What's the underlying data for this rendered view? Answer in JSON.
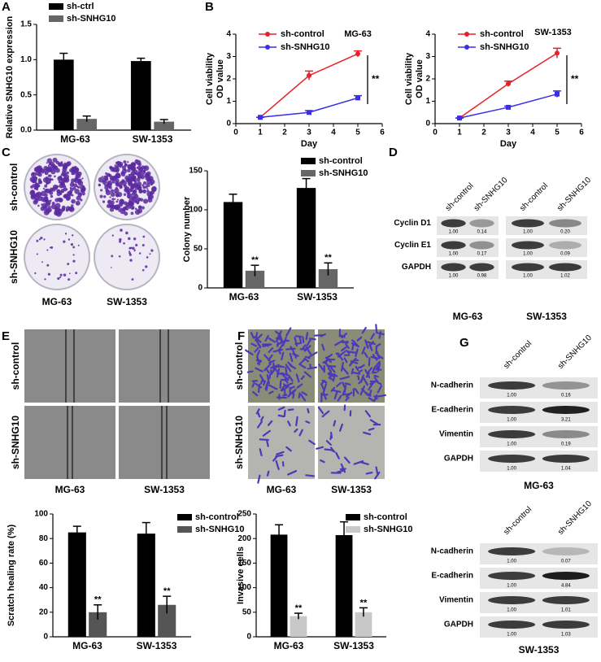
{
  "panels": [
    "A",
    "B",
    "C",
    "D",
    "E",
    "F",
    "G"
  ],
  "chart_data": [
    {
      "type": "bar",
      "ylabel": [
        "Relative SNHG10 expression"
      ],
      "categories": [
        "MG-63",
        "SW-1353"
      ],
      "series": [
        {
          "name": "sh-ctrl",
          "color": "#000000",
          "values": [
            1.0,
            0.98
          ],
          "errors": [
            0.09,
            0.04
          ]
        },
        {
          "name": "sh-SNHG10",
          "color": "#666666",
          "values": [
            0.16,
            0.12
          ],
          "errors": [
            0.04,
            0.03
          ]
        }
      ],
      "ylim": [
        0,
        1.5
      ],
      "yticks": [
        {
          "value": 0,
          "label": "0.0"
        },
        {
          "value": 0.5,
          "label": "0.5"
        },
        {
          "value": 1,
          "label": "1.0"
        },
        {
          "value": 1.5,
          "label": "1.5"
        }
      ]
    },
    {
      "type": "line",
      "title": "MG-63",
      "xlabel": "Day",
      "ylabel": [
        "Cell viability",
        "OD value"
      ],
      "x": [
        1,
        3,
        5
      ],
      "series": [
        {
          "name": "sh-control",
          "color": "#e8202a",
          "values": [
            0.28,
            2.15,
            3.12
          ],
          "errors": [
            0,
            0.2,
            0.13
          ]
        },
        {
          "name": "sh-SNHG10",
          "color": "#3a2ee8",
          "values": [
            0.28,
            0.5,
            1.15
          ],
          "errors": [
            0,
            0.08,
            0.1
          ]
        }
      ],
      "xlim": [
        0,
        6
      ],
      "xticks": [
        0,
        1,
        2,
        3,
        4,
        5,
        6
      ],
      "ylim": [
        0,
        4
      ],
      "yticks": [
        0,
        1,
        2,
        3,
        4
      ],
      "significance": "**"
    },
    {
      "type": "line",
      "title": "SW-1353",
      "xlabel": "Day",
      "ylabel": [
        "Cell viability",
        "OD value"
      ],
      "x": [
        1,
        3,
        5
      ],
      "series": [
        {
          "name": "sh-control",
          "color": "#e8202a",
          "values": [
            0.25,
            1.78,
            3.15
          ],
          "errors": [
            0,
            0.12,
            0.22
          ]
        },
        {
          "name": "sh-SNHG10",
          "color": "#3a2ee8",
          "values": [
            0.25,
            0.73,
            1.32
          ],
          "errors": [
            0,
            0.05,
            0.14
          ]
        }
      ],
      "xlim": [
        0,
        6
      ],
      "xticks": [
        0,
        1,
        2,
        3,
        4,
        5,
        6
      ],
      "ylim": [
        0,
        4
      ],
      "yticks": [
        0,
        1,
        2,
        3,
        4
      ],
      "significance": "**"
    },
    {
      "type": "bar",
      "ylabel": [
        "Colony number"
      ],
      "categories": [
        "MG-63",
        "SW-1353"
      ],
      "series": [
        {
          "name": "sh-control",
          "color": "#000000",
          "values": [
            110,
            128
          ],
          "errors": [
            10,
            12
          ]
        },
        {
          "name": "sh-SNHG10",
          "color": "#666666",
          "values": [
            22,
            24
          ],
          "errors": [
            7,
            8
          ]
        }
      ],
      "ylim": [
        0,
        150
      ],
      "yticks": [
        0,
        50,
        100,
        150
      ],
      "significance": [
        "**",
        "**"
      ]
    },
    {
      "type": "bar",
      "ylabel": [
        "Scratch healing rate (%)"
      ],
      "categories": [
        "MG-63",
        "SW-1353"
      ],
      "series": [
        {
          "name": "sh-control",
          "color": "#000000",
          "values": [
            85,
            84
          ],
          "errors": [
            5,
            9
          ]
        },
        {
          "name": "sh-SNHG10",
          "color": "#555555",
          "values": [
            20,
            26
          ],
          "errors": [
            6,
            7
          ]
        }
      ],
      "ylim": [
        0,
        100
      ],
      "yticks": [
        0,
        20,
        40,
        60,
        80,
        100
      ],
      "significance": [
        "**",
        "**"
      ]
    },
    {
      "type": "bar",
      "ylabel": [
        "Invasive cells"
      ],
      "categories": [
        "MG-63",
        "SW-1353"
      ],
      "series": [
        {
          "name": "sh-control",
          "color": "#000000",
          "values": [
            208,
            207
          ],
          "errors": [
            20,
            27
          ]
        },
        {
          "name": "sh-SNHG10",
          "color": "#c8c8c8",
          "values": [
            42,
            50
          ],
          "errors": [
            6,
            9
          ]
        }
      ],
      "ylim": [
        0,
        250
      ],
      "yticks": [
        0,
        50,
        100,
        150,
        200,
        250
      ],
      "significance": [
        "**",
        "**"
      ]
    }
  ],
  "images": {
    "C": {
      "rows": [
        "sh-control",
        "sh-SNHG10"
      ],
      "cols": [
        "MG-63",
        "SW-1353"
      ]
    },
    "E": {
      "rows": [
        "sh-control",
        "sh-SNHG10"
      ],
      "cols": [
        "MG-63",
        "SW-1353"
      ]
    },
    "F": {
      "rows": [
        "sh-control",
        "sh-SNHG10"
      ],
      "cols": [
        "MG-63",
        "SW-1353"
      ]
    }
  },
  "blots": {
    "D": {
      "lanes": [
        "sh-control",
        "sh-SNHG10"
      ],
      "proteins": [
        "Cyclin D1",
        "Cyclin E1",
        "GAPDH"
      ],
      "groups": [
        {
          "name": "MG-63",
          "values": [
            [
              "1.00",
              "0.14"
            ],
            [
              "1.00",
              "0.17"
            ],
            [
              "1.00",
              "0.98"
            ]
          ]
        },
        {
          "name": "SW-1353",
          "values": [
            [
              "1.00",
              "0.20"
            ],
            [
              "1.00",
              "0.09"
            ],
            [
              "1.00",
              "1.02"
            ]
          ]
        }
      ]
    },
    "G": {
      "lanes": [
        "sh-control",
        "sh-SNHG10"
      ],
      "proteins": [
        "N-cadherin",
        "E-cadherin",
        "Vimentin",
        "GAPDH"
      ],
      "groups": [
        {
          "name": "MG-63",
          "values": [
            [
              "1.00",
              "0.16"
            ],
            [
              "1.00",
              "3.21"
            ],
            [
              "1.00",
              "0.19"
            ],
            [
              "1.00",
              "1.04"
            ]
          ]
        },
        {
          "name": "SW-1353",
          "values": [
            [
              "1.00",
              "0.07"
            ],
            [
              "1.00",
              "4.84"
            ],
            [
              "1.00",
              "1.01"
            ],
            [
              "1.00",
              "1.03"
            ]
          ]
        }
      ]
    }
  }
}
